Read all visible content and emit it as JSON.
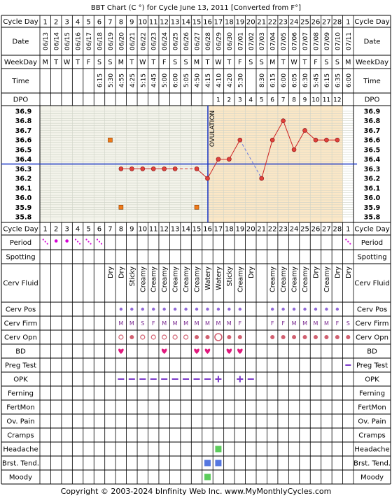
{
  "title": "BBT Chart (C °) for Cycle June 13, 2011  [Converted from F°]",
  "footer": {
    "copyright": "Copyright © 2003-2024 bInfinity Web Inc.",
    "site": "www.MyMonthlyCycles.com"
  },
  "row_labels": {
    "cycle_day": "Cycle Day",
    "date": "Date",
    "weekday": "WeekDay",
    "time": "Time",
    "dpo": "DPO",
    "period": "Period",
    "spotting": "Spotting",
    "cerv_fluid": "Cerv Fluid",
    "cerv_pos": "Cerv Pos",
    "cerv_firm": "Cerv Firm",
    "cerv_opn": "Cerv Opn",
    "bd": "BD",
    "preg_test": "Preg Test",
    "opk": "OPK",
    "ferning": "Ferning",
    "fertmon": "FertMon",
    "ov_pain": "Ov. Pain",
    "cramps": "Cramps",
    "headache": "Headache",
    "brst_tend": "Brst. Tend.",
    "moody": "Moody"
  },
  "ovulation_label": "OVULATION",
  "colors": {
    "grid": "#000000",
    "minor_grid": "#cfd3c7",
    "pre_ov_bg": "#f3f3ea",
    "post_ov_bg": "#fbe7c6",
    "coverline": "#1533c4",
    "temp_line": "#cc2222",
    "temp_fill": "#e0413b",
    "dash_line": "#6b7be0",
    "period": "#d400d4",
    "bd": "#e0197d",
    "pos": "#8f67d6",
    "opk": "#7a38c8",
    "opn": "#d06070",
    "firm": "#7a2a90",
    "symptom_green": "#5ccc5c",
    "symptom_blue": "#5577e0",
    "outlier": "#f07a1a"
  },
  "chart_data": {
    "type": "line",
    "cycle_days": [
      1,
      2,
      3,
      4,
      5,
      6,
      7,
      8,
      9,
      10,
      11,
      12,
      13,
      14,
      15,
      16,
      17,
      18,
      19,
      20,
      21,
      22,
      23,
      24,
      25,
      26,
      27,
      28,
      1
    ],
    "dates": [
      "06/13",
      "06/14",
      "06/15",
      "06/16",
      "06/17",
      "06/18",
      "06/19",
      "06/20",
      "06/21",
      "06/22",
      "06/23",
      "06/24",
      "06/25",
      "06/26",
      "06/27",
      "06/28",
      "06/29",
      "06/30",
      "07/01",
      "07/02",
      "07/03",
      "07/04",
      "07/05",
      "07/06",
      "07/07",
      "07/08",
      "07/09",
      "07/10",
      "07/11"
    ],
    "weekdays": [
      "M",
      "T",
      "W",
      "T",
      "F",
      "S",
      "S",
      "M",
      "T",
      "W",
      "T",
      "F",
      "S",
      "S",
      "M",
      "T",
      "W",
      "T",
      "F",
      "S",
      "S",
      "M",
      "T",
      "W",
      "T",
      "F",
      "S",
      "S",
      "M"
    ],
    "times": [
      "",
      "",
      "",
      "",
      "",
      "6:15",
      "5:30",
      "4:55",
      "4:25",
      "5:15",
      "4:45",
      "5:00",
      "6:00",
      "5:05",
      "4:50",
      "4:15",
      "4:10",
      "4:20",
      "5:30",
      "",
      "8:30",
      "6:15",
      "6:00",
      "6:05",
      "6:30",
      "5:45",
      "6:15",
      "6:35",
      "6:00"
    ],
    "dpo": [
      "",
      "",
      "",
      "",
      "",
      "",
      "",
      "",
      "",
      "",
      "",
      "",
      "",
      "",
      "",
      "",
      "1",
      "2",
      "3",
      "4",
      "5",
      "6",
      "7",
      "8",
      "9",
      "10",
      "11",
      "12",
      ""
    ],
    "y_ticks": [
      36.9,
      36.8,
      36.7,
      36.6,
      36.5,
      36.4,
      36.3,
      36.2,
      36.1,
      36.0,
      35.9,
      35.8
    ],
    "ylim": [
      35.8,
      36.9
    ],
    "temps": [
      null,
      null,
      null,
      null,
      null,
      null,
      null,
      36.3,
      36.3,
      36.3,
      36.3,
      36.3,
      36.3,
      null,
      36.3,
      36.2,
      36.4,
      36.4,
      36.6,
      null,
      36.2,
      36.6,
      36.8,
      36.5,
      36.7,
      36.6,
      36.6,
      36.6,
      null
    ],
    "discarded_temps": [
      null,
      null,
      null,
      null,
      null,
      null,
      null,
      null,
      null,
      null,
      null,
      null,
      null,
      36.3,
      null,
      null,
      null,
      null,
      null,
      36.4,
      null,
      null,
      null,
      null,
      null,
      null,
      null,
      null,
      null
    ],
    "outlier_temps": [
      {
        "day_index": 6,
        "value": 36.6
      },
      {
        "day_index": 7,
        "value": 35.9
      },
      {
        "day_index": 14,
        "value": 35.9
      }
    ],
    "coverline": 36.35,
    "ovulation_day_index": 15,
    "period": [
      "spot",
      "heavy",
      "heavy",
      "spot",
      "spot",
      "spot",
      "",
      "",
      "",
      "",
      "",
      "",
      "",
      "",
      "",
      "",
      "",
      "",
      "",
      "",
      "",
      "",
      "",
      "",
      "",
      "",
      "",
      "",
      "spot"
    ],
    "cerv_fluid": [
      "",
      "",
      "",
      "",
      "",
      "",
      "Dry",
      "Dry",
      "Sticky",
      "Creamy",
      "Creamy",
      "Creamy",
      "Creamy",
      "Creamy",
      "Creamy",
      "Watery",
      "Watery",
      "Sticky",
      "Creamy",
      "Dry",
      "",
      "Creamy",
      "Creamy",
      "Creamy",
      "Creamy",
      "Dry",
      "Creamy",
      "Dry",
      "Dry"
    ],
    "cerv_pos": [
      "",
      "",
      "",
      "",
      "",
      "",
      "",
      "pos",
      "pos",
      "pos",
      "pos",
      "pos",
      "pos",
      "pos",
      "pos",
      "pos",
      "pos",
      "pos",
      "pos",
      "",
      "",
      "pos",
      "pos",
      "pos",
      "pos",
      "pos",
      "pos",
      "pos",
      ""
    ],
    "cerv_firm": [
      "",
      "",
      "",
      "",
      "",
      "",
      "",
      "M",
      "M",
      "S",
      "F",
      "M",
      "M",
      "M",
      "M",
      "M",
      "M",
      "M",
      "F",
      "",
      "",
      "F",
      "F",
      "M",
      "M",
      "M",
      "M",
      "F",
      "S"
    ],
    "cerv_opn": [
      "",
      "",
      "",
      "",
      "",
      "",
      "",
      "open",
      "dot",
      "open",
      "open",
      "open",
      "open",
      "open",
      "dot",
      "dot",
      "big",
      "dot",
      "dot",
      "",
      "",
      "dot",
      "dot",
      "dot",
      "dot",
      "dot",
      "dot",
      "dot",
      "dot"
    ],
    "bd": [
      false,
      false,
      false,
      false,
      false,
      false,
      false,
      true,
      false,
      false,
      false,
      true,
      false,
      false,
      true,
      true,
      false,
      true,
      true,
      false,
      false,
      false,
      false,
      false,
      false,
      false,
      false,
      false,
      false
    ],
    "preg_test": [
      "",
      "",
      "",
      "",
      "",
      "",
      "",
      "",
      "",
      "",
      "",
      "",
      "",
      "",
      "",
      "",
      "",
      "",
      "",
      "",
      "",
      "",
      "",
      "",
      "",
      "",
      "",
      "",
      "neg"
    ],
    "opk": [
      "",
      "",
      "",
      "",
      "",
      "",
      "",
      "neg",
      "neg",
      "neg",
      "neg",
      "neg",
      "neg",
      "neg",
      "neg",
      "neg",
      "pos",
      "",
      "pos",
      "neg",
      "",
      "",
      "",
      "",
      "",
      "",
      "",
      "",
      ""
    ],
    "headache": [
      false,
      false,
      false,
      false,
      false,
      false,
      false,
      false,
      false,
      false,
      false,
      false,
      false,
      false,
      false,
      false,
      true,
      false,
      false,
      false,
      false,
      false,
      false,
      false,
      false,
      false,
      false,
      false,
      false
    ],
    "brst_tend": [
      false,
      false,
      false,
      false,
      false,
      false,
      false,
      false,
      false,
      false,
      false,
      false,
      false,
      false,
      false,
      true,
      true,
      false,
      false,
      false,
      false,
      false,
      false,
      false,
      false,
      false,
      false,
      false,
      false
    ],
    "moody": [
      false,
      false,
      false,
      false,
      false,
      false,
      false,
      false,
      false,
      false,
      false,
      false,
      false,
      false,
      false,
      true,
      false,
      false,
      false,
      false,
      false,
      false,
      false,
      false,
      false,
      false,
      false,
      false,
      false
    ]
  }
}
